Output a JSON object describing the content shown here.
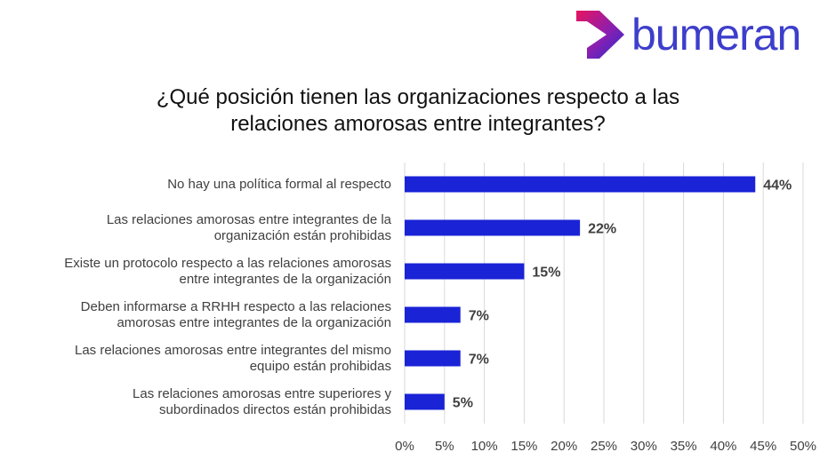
{
  "brand": {
    "name": "bumeran",
    "colors": {
      "logo_text": "#3d3ecb",
      "logo_mark_a": "#e8145f",
      "logo_mark_b": "#2a2ad0"
    }
  },
  "title_lines": [
    "¿Qué posición tienen las organizaciones respecto a las",
    "relaciones amorosas entre integrantes?"
  ],
  "chart_data": {
    "type": "bar",
    "orientation": "horizontal",
    "categories": [
      "No hay una política formal al respecto",
      "Las relaciones amorosas entre integrantes de la organización están prohibidas",
      "Existe un protocolo respecto a las relaciones amorosas entre integrantes de la organización",
      "Deben informarse a RRHH respecto a las relaciones amorosas entre integrantes de la organización",
      "Las relaciones amorosas entre integrantes del mismo equipo están prohibidas",
      "Las relaciones amorosas entre superiores y subordinados directos están prohibidas"
    ],
    "category_lines": [
      [
        "No hay una política formal al respecto"
      ],
      [
        "Las relaciones amorosas entre integrantes de la",
        "organización están prohibidas"
      ],
      [
        "Existe un protocolo respecto a las relaciones amorosas",
        "entre integrantes de la organización"
      ],
      [
        "Deben informarse a RRHH respecto a las relaciones",
        "amorosas entre integrantes de la organización"
      ],
      [
        "Las relaciones amorosas entre integrantes del mismo",
        "equipo están prohibidas"
      ],
      [
        "Las relaciones amorosas entre superiores y",
        "subordinados directos están prohibidas"
      ]
    ],
    "values": [
      44,
      22,
      15,
      7,
      7,
      5
    ],
    "data_labels": [
      "44%",
      "22%",
      "15%",
      "7%",
      "7%",
      "5%"
    ],
    "xlim": [
      0,
      50
    ],
    "xticks": [
      0,
      5,
      10,
      15,
      20,
      25,
      30,
      35,
      40,
      45,
      50
    ],
    "xtick_labels": [
      "0%",
      "5%",
      "10%",
      "15%",
      "20%",
      "25%",
      "30%",
      "35%",
      "40%",
      "45%",
      "50%"
    ],
    "grid": "vertical",
    "bar_color": "#1a23d6",
    "grid_color": "#d9d9d9"
  }
}
